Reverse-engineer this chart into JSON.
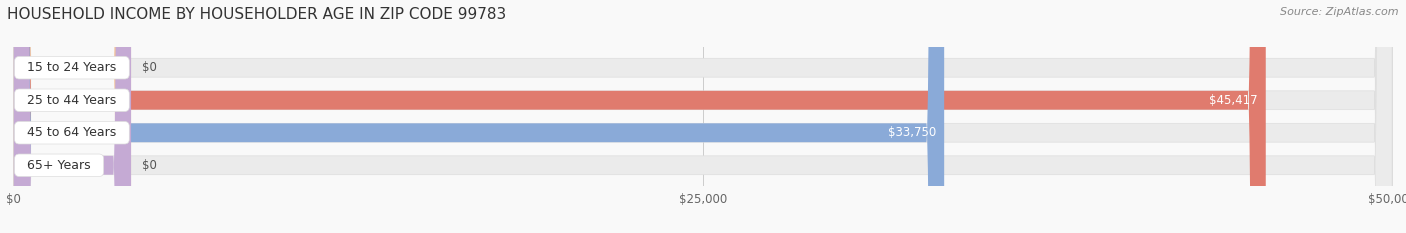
{
  "title": "HOUSEHOLD INCOME BY HOUSEHOLDER AGE IN ZIP CODE 99783",
  "source": "Source: ZipAtlas.com",
  "categories": [
    "15 to 24 Years",
    "25 to 44 Years",
    "45 to 64 Years",
    "65+ Years"
  ],
  "values": [
    0,
    45417,
    33750,
    0
  ],
  "bar_colors": [
    "#f2c49e",
    "#e07b6e",
    "#8aaad8",
    "#c5aad4"
  ],
  "bar_bg_color": "#ebebeb",
  "bar_bg_border": "#dedede",
  "xlim": [
    0,
    50000
  ],
  "xticks": [
    0,
    25000,
    50000
  ],
  "xtick_labels": [
    "$0",
    "$25,000",
    "$50,000"
  ],
  "value_labels": [
    "$0",
    "$45,417",
    "$33,750",
    "$0"
  ],
  "figsize": [
    14.06,
    2.33
  ],
  "background_color": "#f9f9f9",
  "title_color": "#333333",
  "source_color": "#888888",
  "title_fontsize": 11,
  "source_fontsize": 8,
  "bar_label_fontsize": 9,
  "value_label_fontsize": 8.5
}
